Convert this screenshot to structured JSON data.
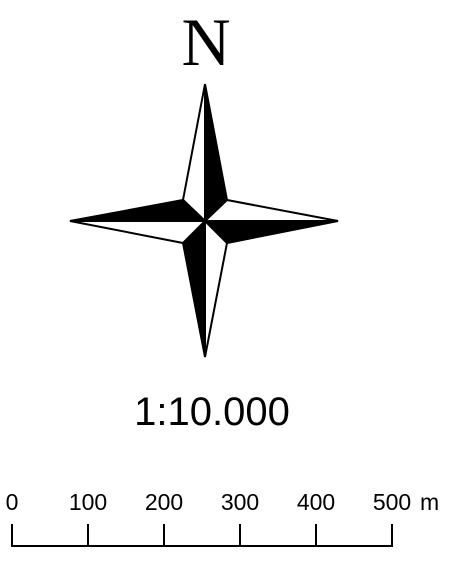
{
  "north_arrow": {
    "label": "N",
    "icon": "compass-rose-icon"
  },
  "scale": {
    "ratio_text": "1:10.000",
    "unit": "m",
    "ticks": [
      "0",
      "100",
      "200",
      "300",
      "400",
      "500"
    ]
  },
  "colors": {
    "ink": "#000000",
    "paper": "#ffffff"
  }
}
